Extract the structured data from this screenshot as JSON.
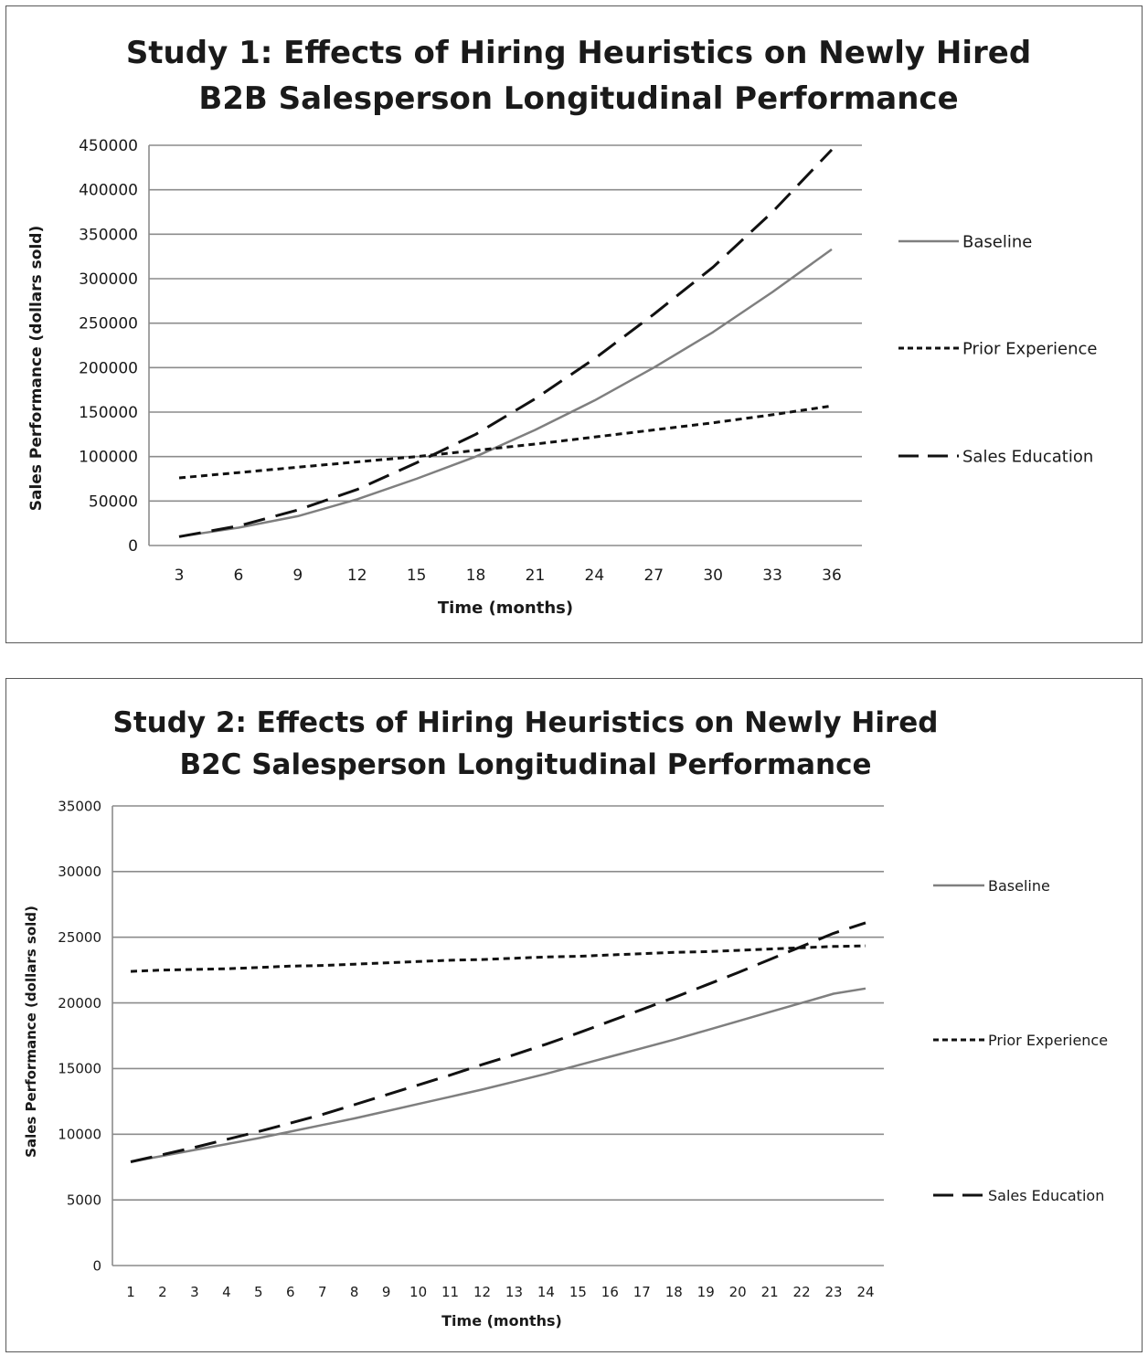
{
  "chart_data": [
    {
      "type": "line",
      "title_lines": [
        "Study 1:  Effects of Hiring Heuristics on Newly Hired",
        "B2B Salesperson Longitudinal Performance"
      ],
      "xlabel": "Time (months)",
      "ylabel": "Sales Performance (dollars sold)",
      "x": [
        3,
        6,
        9,
        12,
        15,
        18,
        21,
        24,
        27,
        30,
        33,
        36
      ],
      "ylim": [
        0,
        450000
      ],
      "yticks": [
        "0",
        "50000",
        "100000",
        "150000",
        "200000",
        "250000",
        "300000",
        "350000",
        "400000",
        "450000"
      ],
      "grid": true,
      "legend_position": "right",
      "series": [
        {
          "name": "Baseline",
          "style": "solid",
          "color": "#7f7f7f",
          "values": [
            10000,
            20000,
            33000,
            52000,
            75000,
            100000,
            130000,
            163000,
            200000,
            240000,
            285000,
            333000
          ]
        },
        {
          "name": "Prior Experience",
          "style": "dotted",
          "color": "#111111",
          "values": [
            76000,
            82000,
            88000,
            94000,
            100000,
            107000,
            114000,
            122000,
            130000,
            138000,
            147000,
            157000
          ]
        },
        {
          "name": "Sales Education",
          "style": "dashed",
          "color": "#111111",
          "values": [
            10000,
            22000,
            40000,
            63000,
            93000,
            125000,
            165000,
            210000,
            260000,
            313000,
            375000,
            445000
          ]
        }
      ]
    },
    {
      "type": "line",
      "title_lines": [
        "Study 2:  Effects of Hiring Heuristics on Newly Hired",
        "B2C Salesperson Longitudinal Performance"
      ],
      "xlabel": "Time (months)",
      "ylabel": "Sales Performance (dollars sold)",
      "x": [
        1,
        2,
        3,
        4,
        5,
        6,
        7,
        8,
        9,
        10,
        11,
        12,
        13,
        14,
        15,
        16,
        17,
        18,
        19,
        20,
        21,
        22,
        23,
        24
      ],
      "ylim": [
        0,
        35000
      ],
      "yticks": [
        "0",
        "5000",
        "10000",
        "15000",
        "20000",
        "25000",
        "30000",
        "35000"
      ],
      "grid": true,
      "legend_position": "right",
      "series": [
        {
          "name": "Baseline",
          "style": "solid",
          "color": "#7f7f7f",
          "values": [
            7900,
            8350,
            8800,
            9250,
            9700,
            10200,
            10700,
            11200,
            11750,
            12300,
            12850,
            13400,
            14000,
            14600,
            15250,
            15900,
            16550,
            17200,
            17900,
            18600,
            19300,
            20000,
            20700,
            21100
          ]
        },
        {
          "name": "Prior Experience",
          "style": "dotted",
          "color": "#111111",
          "values": [
            22400,
            22500,
            22550,
            22600,
            22700,
            22800,
            22850,
            22950,
            23050,
            23150,
            23250,
            23300,
            23400,
            23500,
            23550,
            23650,
            23750,
            23850,
            23900,
            24000,
            24100,
            24200,
            24300,
            24350
          ]
        },
        {
          "name": "Sales Education",
          "style": "dashed",
          "color": "#111111",
          "values": [
            7900,
            8450,
            9000,
            9600,
            10200,
            10850,
            11500,
            12250,
            13000,
            13750,
            14500,
            15300,
            16050,
            16850,
            17700,
            18600,
            19500,
            20400,
            21350,
            22300,
            23300,
            24300,
            25300,
            26100
          ]
        }
      ]
    }
  ]
}
